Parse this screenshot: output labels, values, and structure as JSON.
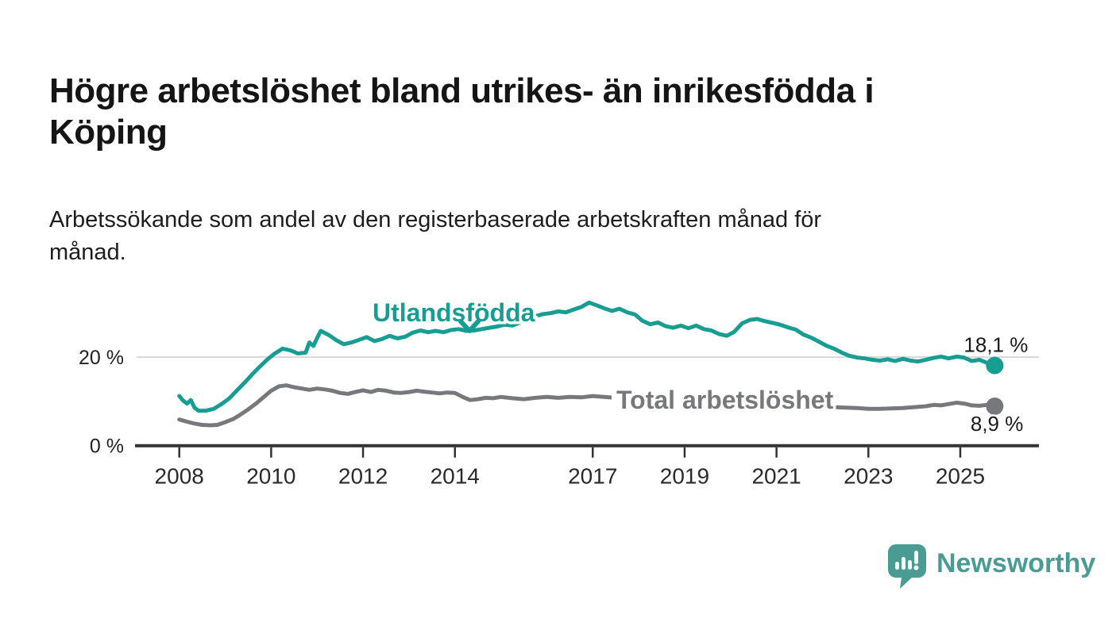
{
  "header": {
    "title": "Högre arbetslöshet bland utrikes- än inrikesfödda i\nKöping",
    "subtitle": "Arbetssökande som andel av den registerbaserade arbetskraften månad för\nmånad."
  },
  "footer": {
    "brand": "Newsworthy",
    "brand_color": "#4a9c93"
  },
  "chart_data": {
    "type": "line",
    "title": "Högre arbetslöshet bland utrikes- än inrikesfödda i Köping",
    "subtitle": "Arbetssökande som andel av den registerbaserade arbetskraften månad för månad.",
    "unit": "%",
    "grid": "horizontal-20-only",
    "legend_position": "inline-labels",
    "xlim": [
      2007.7,
      2026.3
    ],
    "ylim": [
      0,
      35
    ],
    "x_axis": {
      "ticks": [
        2008,
        2010,
        2012,
        2014,
        2017,
        2019,
        2021,
        2023,
        2025
      ]
    },
    "y_axis": {
      "ticks": [
        {
          "value": 20,
          "label": "20 %"
        },
        {
          "value": 0,
          "label": "0 %"
        }
      ]
    },
    "colors": {
      "utlandsfodda": "#179d91",
      "total": "#77787b",
      "gridline": "#d9d9d9",
      "axis": "#333333",
      "end_label_text": "#1a1a1a"
    },
    "series": [
      {
        "name": "Utlandsfödda",
        "color": "#179d91",
        "end_label": "18,1 %",
        "end_value": 18.1,
        "points": [
          [
            2008.0,
            11.2
          ],
          [
            2008.08,
            10.2
          ],
          [
            2008.17,
            9.5
          ],
          [
            2008.25,
            10.3
          ],
          [
            2008.33,
            8.6
          ],
          [
            2008.42,
            7.9
          ],
          [
            2008.58,
            7.9
          ],
          [
            2008.75,
            8.3
          ],
          [
            2008.92,
            9.4
          ],
          [
            2009.08,
            10.6
          ],
          [
            2009.25,
            12.4
          ],
          [
            2009.42,
            14.2
          ],
          [
            2009.58,
            16.0
          ],
          [
            2009.75,
            17.8
          ],
          [
            2009.92,
            19.5
          ],
          [
            2010.08,
            20.8
          ],
          [
            2010.25,
            21.9
          ],
          [
            2010.42,
            21.5
          ],
          [
            2010.58,
            20.8
          ],
          [
            2010.75,
            21.0
          ],
          [
            2010.83,
            23.3
          ],
          [
            2010.92,
            22.5
          ],
          [
            2011.0,
            24.3
          ],
          [
            2011.08,
            25.9
          ],
          [
            2011.25,
            25.0
          ],
          [
            2011.42,
            23.8
          ],
          [
            2011.58,
            22.9
          ],
          [
            2011.75,
            23.3
          ],
          [
            2011.92,
            23.9
          ],
          [
            2012.08,
            24.5
          ],
          [
            2012.25,
            23.6
          ],
          [
            2012.42,
            24.1
          ],
          [
            2012.58,
            24.8
          ],
          [
            2012.75,
            24.2
          ],
          [
            2012.92,
            24.6
          ],
          [
            2013.08,
            25.5
          ],
          [
            2013.25,
            26.0
          ],
          [
            2013.42,
            25.6
          ],
          [
            2013.58,
            25.9
          ],
          [
            2013.75,
            25.6
          ],
          [
            2013.92,
            26.1
          ],
          [
            2014.08,
            26.3
          ],
          [
            2014.25,
            25.9
          ],
          [
            2014.42,
            26.0
          ],
          [
            2014.58,
            26.3
          ],
          [
            2014.75,
            26.6
          ],
          [
            2014.92,
            26.9
          ],
          [
            2015.08,
            27.3
          ],
          [
            2015.25,
            27.1
          ],
          [
            2015.42,
            27.8
          ],
          [
            2015.58,
            28.3
          ],
          [
            2015.75,
            29.2
          ],
          [
            2015.92,
            29.7
          ],
          [
            2016.08,
            29.9
          ],
          [
            2016.25,
            30.3
          ],
          [
            2016.42,
            30.1
          ],
          [
            2016.58,
            30.7
          ],
          [
            2016.75,
            31.3
          ],
          [
            2016.92,
            32.3
          ],
          [
            2017.08,
            31.7
          ],
          [
            2017.25,
            31.0
          ],
          [
            2017.42,
            30.4
          ],
          [
            2017.58,
            30.9
          ],
          [
            2017.75,
            30.1
          ],
          [
            2017.92,
            29.6
          ],
          [
            2018.08,
            28.2
          ],
          [
            2018.25,
            27.4
          ],
          [
            2018.42,
            27.8
          ],
          [
            2018.58,
            27.0
          ],
          [
            2018.75,
            26.6
          ],
          [
            2018.92,
            27.1
          ],
          [
            2019.08,
            26.5
          ],
          [
            2019.25,
            27.1
          ],
          [
            2019.42,
            26.3
          ],
          [
            2019.58,
            26.0
          ],
          [
            2019.75,
            25.2
          ],
          [
            2019.92,
            24.8
          ],
          [
            2020.08,
            25.7
          ],
          [
            2020.25,
            27.6
          ],
          [
            2020.42,
            28.4
          ],
          [
            2020.58,
            28.6
          ],
          [
            2020.75,
            28.1
          ],
          [
            2020.92,
            27.7
          ],
          [
            2021.08,
            27.3
          ],
          [
            2021.25,
            26.7
          ],
          [
            2021.42,
            26.2
          ],
          [
            2021.58,
            25.1
          ],
          [
            2021.75,
            24.4
          ],
          [
            2021.92,
            23.5
          ],
          [
            2022.08,
            22.6
          ],
          [
            2022.25,
            21.9
          ],
          [
            2022.42,
            21.0
          ],
          [
            2022.58,
            20.3
          ],
          [
            2022.75,
            19.9
          ],
          [
            2022.92,
            19.7
          ],
          [
            2023.08,
            19.4
          ],
          [
            2023.25,
            19.2
          ],
          [
            2023.42,
            19.5
          ],
          [
            2023.58,
            19.1
          ],
          [
            2023.75,
            19.6
          ],
          [
            2023.92,
            19.2
          ],
          [
            2024.08,
            19.0
          ],
          [
            2024.25,
            19.4
          ],
          [
            2024.42,
            19.8
          ],
          [
            2024.58,
            20.1
          ],
          [
            2024.75,
            19.7
          ],
          [
            2024.92,
            20.1
          ],
          [
            2025.08,
            19.9
          ],
          [
            2025.25,
            19.1
          ],
          [
            2025.42,
            19.4
          ],
          [
            2025.58,
            18.7
          ],
          [
            2025.75,
            18.1
          ]
        ]
      },
      {
        "name": "Total arbetslöshet",
        "color": "#77787b",
        "end_label": "8,9 %",
        "end_value": 8.9,
        "points": [
          [
            2008.0,
            5.9
          ],
          [
            2008.17,
            5.4
          ],
          [
            2008.33,
            5.0
          ],
          [
            2008.5,
            4.7
          ],
          [
            2008.67,
            4.6
          ],
          [
            2008.83,
            4.7
          ],
          [
            2009.0,
            5.3
          ],
          [
            2009.17,
            6.0
          ],
          [
            2009.33,
            7.0
          ],
          [
            2009.5,
            8.2
          ],
          [
            2009.67,
            9.5
          ],
          [
            2009.83,
            10.9
          ],
          [
            2010.0,
            12.4
          ],
          [
            2010.17,
            13.4
          ],
          [
            2010.33,
            13.6
          ],
          [
            2010.5,
            13.2
          ],
          [
            2010.67,
            12.9
          ],
          [
            2010.83,
            12.6
          ],
          [
            2011.0,
            12.9
          ],
          [
            2011.17,
            12.7
          ],
          [
            2011.33,
            12.4
          ],
          [
            2011.5,
            11.9
          ],
          [
            2011.67,
            11.7
          ],
          [
            2011.83,
            12.1
          ],
          [
            2012.0,
            12.5
          ],
          [
            2012.17,
            12.1
          ],
          [
            2012.33,
            12.6
          ],
          [
            2012.5,
            12.4
          ],
          [
            2012.67,
            12.0
          ],
          [
            2012.83,
            11.9
          ],
          [
            2013.0,
            12.1
          ],
          [
            2013.17,
            12.4
          ],
          [
            2013.33,
            12.2
          ],
          [
            2013.5,
            12.0
          ],
          [
            2013.67,
            11.8
          ],
          [
            2013.83,
            12.0
          ],
          [
            2014.0,
            11.9
          ],
          [
            2014.17,
            11.0
          ],
          [
            2014.33,
            10.3
          ],
          [
            2014.5,
            10.5
          ],
          [
            2014.67,
            10.8
          ],
          [
            2014.83,
            10.7
          ],
          [
            2015.0,
            11.0
          ],
          [
            2015.25,
            10.7
          ],
          [
            2015.5,
            10.5
          ],
          [
            2015.75,
            10.8
          ],
          [
            2016.0,
            11.0
          ],
          [
            2016.25,
            10.8
          ],
          [
            2016.5,
            11.0
          ],
          [
            2016.75,
            10.9
          ],
          [
            2017.0,
            11.2
          ],
          [
            2017.25,
            11.0
          ],
          [
            2017.5,
            10.8
          ],
          [
            2017.75,
            10.6
          ],
          [
            2018.0,
            10.4
          ],
          [
            2018.25,
            10.2
          ],
          [
            2018.5,
            10.0
          ],
          [
            2018.75,
            9.8
          ],
          [
            2019.0,
            9.6
          ],
          [
            2019.25,
            9.5
          ],
          [
            2019.5,
            9.3
          ],
          [
            2019.75,
            9.2
          ],
          [
            2020.0,
            9.5
          ],
          [
            2020.25,
            10.4
          ],
          [
            2020.5,
            10.8
          ],
          [
            2020.75,
            10.5
          ],
          [
            2021.0,
            10.1
          ],
          [
            2021.25,
            9.7
          ],
          [
            2021.5,
            9.4
          ],
          [
            2021.75,
            9.1
          ],
          [
            2022.0,
            8.9
          ],
          [
            2022.25,
            8.7
          ],
          [
            2022.5,
            8.6
          ],
          [
            2022.75,
            8.5
          ],
          [
            2023.0,
            8.3
          ],
          [
            2023.25,
            8.3
          ],
          [
            2023.5,
            8.4
          ],
          [
            2023.75,
            8.5
          ],
          [
            2024.0,
            8.7
          ],
          [
            2024.25,
            8.9
          ],
          [
            2024.42,
            9.2
          ],
          [
            2024.58,
            9.1
          ],
          [
            2024.75,
            9.4
          ],
          [
            2024.92,
            9.7
          ],
          [
            2025.08,
            9.5
          ],
          [
            2025.25,
            9.1
          ],
          [
            2025.42,
            9.0
          ],
          [
            2025.58,
            9.2
          ],
          [
            2025.75,
            8.9
          ]
        ]
      }
    ]
  }
}
